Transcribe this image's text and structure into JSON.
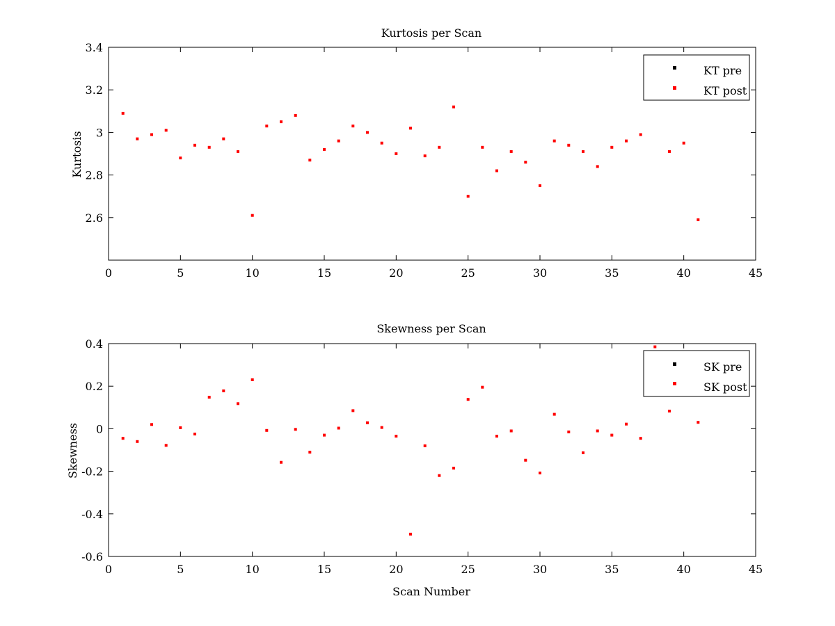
{
  "colors": {
    "pre": "#000000",
    "post": "#ff0000",
    "axes": "#000000",
    "background": "#ffffff"
  },
  "chart_data": [
    {
      "type": "scatter",
      "title": "Kurtosis per Scan",
      "xlabel": "",
      "ylabel": "Kurtosis",
      "xlim": [
        0,
        45
      ],
      "ylim": [
        2.4,
        3.4
      ],
      "xticks": [
        "0",
        "5",
        "10",
        "15",
        "20",
        "25",
        "30",
        "35",
        "40",
        "45"
      ],
      "yticks": [
        "2.6",
        "2.8",
        "3",
        "3.2",
        "3.4"
      ],
      "xtick_values": [
        0,
        5,
        10,
        15,
        20,
        25,
        30,
        35,
        40,
        45
      ],
      "ytick_values": [
        2.6,
        2.8,
        3.0,
        3.2,
        3.4
      ],
      "grid": false,
      "legend_position": "top-right",
      "series": [
        {
          "name": "KT pre",
          "color": "#000000",
          "x": [],
          "y": []
        },
        {
          "name": "KT post",
          "color": "#ff0000",
          "x": [
            1,
            2,
            3,
            4,
            5,
            6,
            7,
            8,
            9,
            10,
            11,
            12,
            13,
            14,
            15,
            16,
            17,
            18,
            19,
            20,
            21,
            22,
            23,
            24,
            25,
            26,
            27,
            28,
            29,
            30,
            31,
            32,
            33,
            34,
            35,
            36,
            37,
            39,
            40,
            41
          ],
          "y": [
            3.09,
            2.97,
            2.99,
            3.01,
            2.88,
            2.94,
            2.93,
            2.97,
            2.91,
            2.61,
            3.03,
            3.05,
            3.08,
            2.87,
            2.92,
            2.96,
            3.03,
            3.0,
            2.95,
            2.9,
            3.02,
            2.89,
            2.93,
            3.12,
            2.7,
            2.93,
            2.82,
            2.91,
            2.86,
            2.75,
            2.96,
            2.94,
            2.91,
            2.84,
            2.93,
            2.96,
            2.99,
            2.91,
            2.95,
            2.59
          ]
        }
      ]
    },
    {
      "type": "scatter",
      "title": "Skewness per Scan",
      "xlabel": "Scan Number",
      "ylabel": "Skewness",
      "xlim": [
        0,
        45
      ],
      "ylim": [
        -0.6,
        0.4
      ],
      "xticks": [
        "0",
        "5",
        "10",
        "15",
        "20",
        "25",
        "30",
        "35",
        "40",
        "45"
      ],
      "yticks": [
        "-0.6",
        "-0.4",
        "-0.2",
        "0",
        "0.2",
        "0.4"
      ],
      "xtick_values": [
        0,
        5,
        10,
        15,
        20,
        25,
        30,
        35,
        40,
        45
      ],
      "ytick_values": [
        -0.6,
        -0.4,
        -0.2,
        0,
        0.2,
        0.4
      ],
      "grid": false,
      "legend_position": "top-right",
      "series": [
        {
          "name": "SK pre",
          "color": "#000000",
          "x": [],
          "y": []
        },
        {
          "name": "SK post",
          "color": "#ff0000",
          "x": [
            1,
            2,
            3,
            4,
            5,
            6,
            7,
            8,
            9,
            10,
            11,
            12,
            13,
            14,
            15,
            16,
            17,
            18,
            19,
            20,
            21,
            22,
            23,
            24,
            25,
            26,
            27,
            28,
            29,
            30,
            31,
            32,
            33,
            34,
            35,
            36,
            37,
            38,
            39,
            41
          ],
          "y": [
            -0.045,
            -0.06,
            0.02,
            -0.078,
            0.005,
            -0.025,
            0.148,
            0.178,
            0.118,
            0.23,
            -0.008,
            -0.158,
            -0.003,
            -0.11,
            -0.03,
            0.003,
            0.085,
            0.028,
            0.006,
            -0.035,
            -0.495,
            -0.08,
            -0.22,
            -0.185,
            0.138,
            0.195,
            -0.035,
            -0.01,
            -0.148,
            -0.208,
            0.068,
            -0.015,
            -0.113,
            -0.01,
            -0.03,
            0.022,
            -0.045,
            0.385,
            0.083,
            0.03
          ]
        }
      ]
    }
  ]
}
